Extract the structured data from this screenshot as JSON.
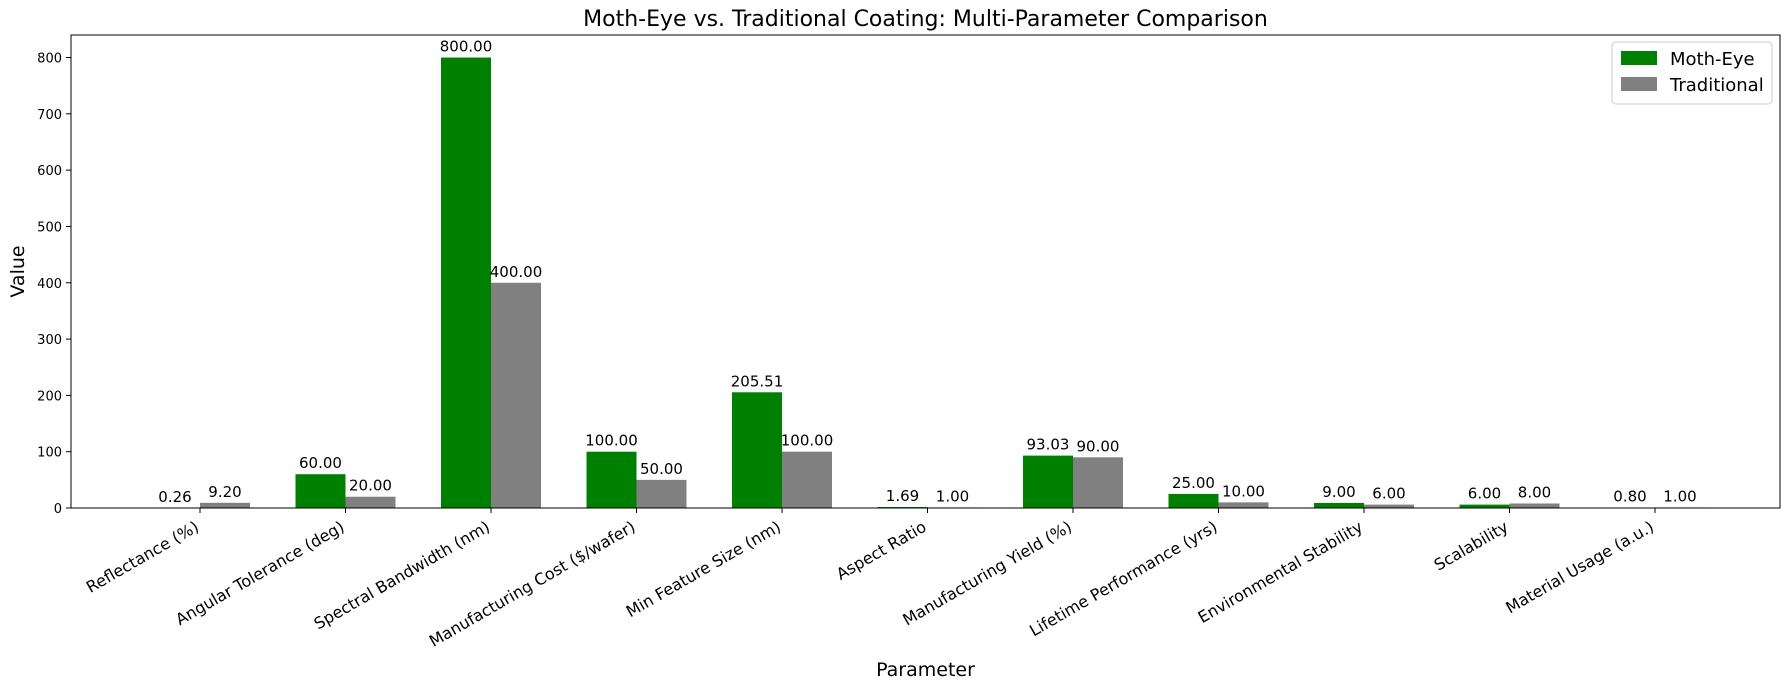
{
  "chart_data": {
    "type": "bar",
    "title": "Moth-Eye vs. Traditional Coating: Multi-Parameter Comparison",
    "xlabel": "Parameter",
    "ylabel": "Value",
    "ylim": [
      0,
      840
    ],
    "yticks": [
      0,
      100,
      200,
      300,
      400,
      500,
      600,
      700,
      800
    ],
    "legend_position": "top-right",
    "grid": false,
    "categories": [
      "Reflectance (%)",
      "Angular Tolerance (deg)",
      "Spectral Bandwidth (nm)",
      "Manufacturing Cost ($/wafer)",
      "Min Feature Size (nm)",
      "Aspect Ratio",
      "Manufacturing Yield (%)",
      "Lifetime Performance (yrs)",
      "Environmental Stability",
      "Scalability",
      "Material Usage (a.u.)"
    ],
    "series": [
      {
        "name": "Moth-Eye",
        "color": "#008000",
        "values": [
          0.26,
          60.0,
          800.0,
          100.0,
          205.51,
          1.69,
          93.03,
          25.0,
          9.0,
          6.0,
          0.8
        ],
        "labels": [
          "0.26",
          "60.00",
          "800.00",
          "100.00",
          "205.51",
          "1.69",
          "93.03",
          "25.00",
          "9.00",
          "6.00",
          "0.80"
        ]
      },
      {
        "name": "Traditional",
        "color": "#808080",
        "values": [
          9.2,
          20.0,
          400.0,
          50.0,
          100.0,
          1.0,
          90.0,
          10.0,
          6.0,
          8.0,
          1.0
        ],
        "labels": [
          "9.20",
          "20.00",
          "400.00",
          "50.00",
          "100.00",
          "1.00",
          "90.00",
          "10.00",
          "6.00",
          "8.00",
          "1.00"
        ]
      }
    ]
  }
}
